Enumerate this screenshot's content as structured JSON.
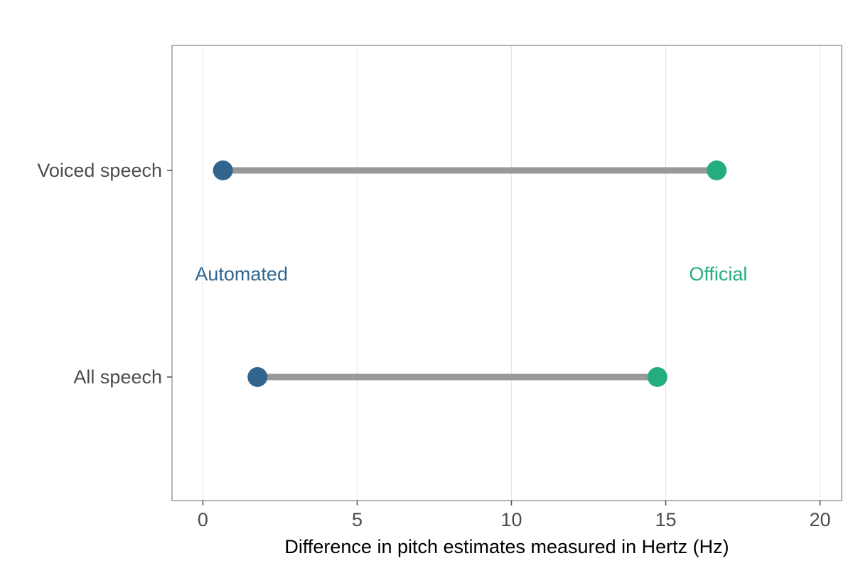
{
  "chart_data": {
    "type": "dumbbell",
    "title": "",
    "xlabel": "Difference in pitch estimates measured in Hertz (Hz)",
    "ylabel": "",
    "xlim": [
      -1,
      20.7
    ],
    "x_ticks": [
      0,
      5,
      10,
      15,
      20
    ],
    "categories": [
      "Voiced speech",
      "All speech"
    ],
    "series": [
      {
        "name": "Automated",
        "values": [
          0.65,
          1.77
        ],
        "color": "#31658e"
      },
      {
        "name": "Official",
        "values": [
          16.65,
          14.73
        ],
        "color": "#25ad80"
      }
    ],
    "annotations": [
      {
        "text": "Automated",
        "color": "#31658e"
      },
      {
        "text": "Official",
        "color": "#25ad80"
      }
    ],
    "segment_color": "#999999",
    "grid": {
      "vertical_major": true,
      "horizontal": false
    },
    "panel_border": true,
    "legend": "none"
  }
}
